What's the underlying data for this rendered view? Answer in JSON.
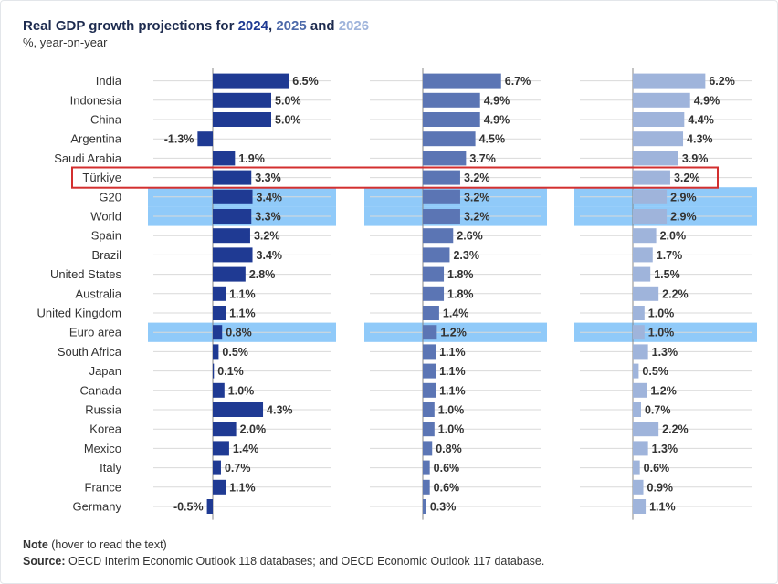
{
  "title": {
    "prefix": "Real GDP growth projections for ",
    "year1": "2024",
    "sep": ", ",
    "year2": "2025",
    "and": " and ",
    "year3": "2026"
  },
  "subtitle": "%, year-on-year",
  "footer": {
    "note_label": "Note",
    "note_text": " (hover to read the text)",
    "source_label": "Source:",
    "source_text": " OECD Interim Economic Outlook 118 databases; and OECD Economic Outlook 117 database."
  },
  "colors": {
    "2024": "#1f3a93",
    "2025": "#5b75b4",
    "2026": "#9fb4db",
    "highlight_band": "#90caf9",
    "box": "#d32f2f"
  },
  "chart_data": {
    "type": "bar",
    "orientation": "horizontal",
    "title": "Real GDP growth projections for 2024, 2025 and 2026",
    "unit": "%, year-on-year",
    "categories": [
      "India",
      "Indonesia",
      "China",
      "Argentina",
      "Saudi Arabia",
      "Türkiye",
      "G20",
      "World",
      "Spain",
      "Brazil",
      "United States",
      "Australia",
      "United Kingdom",
      "Euro area",
      "South Africa",
      "Japan",
      "Canada",
      "Russia",
      "Korea",
      "Mexico",
      "Italy",
      "France",
      "Germany"
    ],
    "highlighted_rows": [
      "G20",
      "World",
      "Euro area"
    ],
    "boxed_row": "Türkiye",
    "series": [
      {
        "name": "2024",
        "values": [
          6.5,
          5.0,
          5.0,
          -1.3,
          1.9,
          3.3,
          3.4,
          3.3,
          3.2,
          3.4,
          2.8,
          1.1,
          1.1,
          0.8,
          0.5,
          0.1,
          1.0,
          4.3,
          2.0,
          1.4,
          0.7,
          1.1,
          -0.5
        ]
      },
      {
        "name": "2025",
        "values": [
          6.7,
          4.9,
          4.9,
          4.5,
          3.7,
          3.2,
          3.2,
          3.2,
          2.6,
          2.3,
          1.8,
          1.8,
          1.4,
          1.2,
          1.1,
          1.1,
          1.1,
          1.0,
          1.0,
          0.8,
          0.6,
          0.6,
          0.3
        ]
      },
      {
        "name": "2026",
        "values": [
          6.2,
          4.9,
          4.4,
          4.3,
          3.9,
          3.2,
          2.9,
          2.9,
          2.0,
          1.7,
          1.5,
          2.2,
          1.0,
          1.0,
          1.3,
          0.5,
          1.2,
          0.7,
          2.2,
          1.3,
          0.6,
          0.9,
          1.1
        ]
      }
    ],
    "data_labels": [
      [
        "6.5%",
        "5.0%",
        "5.0%",
        "-1.3%",
        "1.9%",
        "3.3%",
        "3.4%",
        "3.3%",
        "3.2%",
        "3.4%",
        "2.8%",
        "1.1%",
        "1.1%",
        "0.8%",
        "0.5%",
        "0.1%",
        "1.0%",
        "4.3%",
        "2.0%",
        "1.4%",
        "0.7%",
        "1.1%",
        "-0.5%"
      ],
      [
        "6.7%",
        "4.9%",
        "4.9%",
        "4.5%",
        "3.7%",
        "3.2%",
        "3.2%",
        "3.2%",
        "2.6%",
        "2.3%",
        "1.8%",
        "1.8%",
        "1.4%",
        "1.2%",
        "1.1%",
        "1.1%",
        "1.1%",
        "1.0%",
        "1.0%",
        "0.8%",
        "0.6%",
        "0.6%",
        "0.3%"
      ],
      [
        "6.2%",
        "4.9%",
        "4.4%",
        "4.3%",
        "3.9%",
        "3.2%",
        "2.9%",
        "2.9%",
        "2.0%",
        "1.7%",
        "1.5%",
        "2.2%",
        "1.0%",
        "1.0%",
        "1.3%",
        "0.5%",
        "1.2%",
        "0.7%",
        "2.2%",
        "1.3%",
        "0.6%",
        "0.9%",
        "1.1%"
      ]
    ]
  }
}
